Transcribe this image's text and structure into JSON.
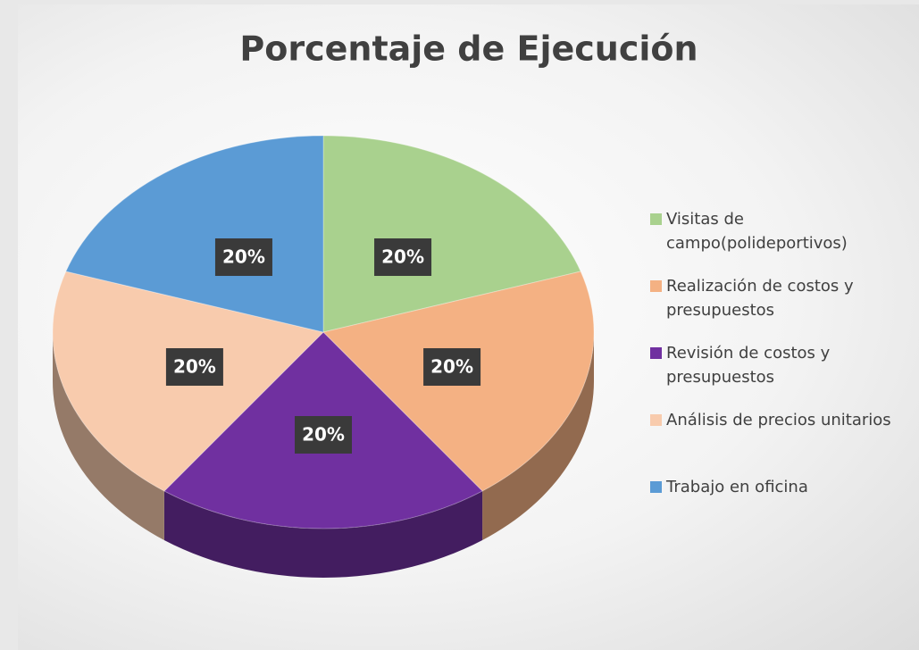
{
  "chart_data": {
    "type": "pie",
    "title": "Porcentaje de Ejecución",
    "categories": [
      "Visitas de campo(polideportivos)",
      "Realización de costos y presupuestos",
      "Revisión de costos y presupuestos",
      "Análisis de precios unitarios",
      "Trabajo en oficina"
    ],
    "values": [
      20,
      20,
      20,
      20,
      20
    ],
    "value_labels": [
      "20%",
      "20%",
      "20%",
      "20%",
      "20%"
    ],
    "colors": [
      "#a9d18e",
      "#f4b183",
      "#7030a0",
      "#f8cbad",
      "#5b9bd5"
    ],
    "legend": "right"
  }
}
